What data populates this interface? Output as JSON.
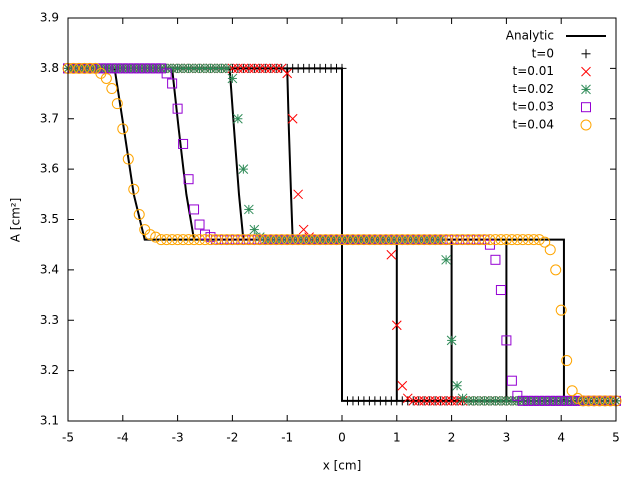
{
  "chart_data": {
    "type": "scatter",
    "xlabel": "x [cm]",
    "ylabel": "A [cm²]",
    "xlim": [
      -5,
      5
    ],
    "ylim": [
      3.1,
      3.9
    ],
    "xticks": [
      -5,
      -4,
      -3,
      -2,
      -1,
      0,
      1,
      2,
      3,
      4,
      5
    ],
    "yticks": [
      3.1,
      3.2,
      3.3,
      3.4,
      3.5,
      3.6,
      3.7,
      3.8,
      3.9
    ],
    "legend": "top-right",
    "grid": false,
    "x": [
      -5,
      -4.9,
      -4.8,
      -4.7,
      -4.6,
      -4.5,
      -4.4,
      -4.3,
      -4.2,
      -4.1,
      -4,
      -3.9,
      -3.8,
      -3.7,
      -3.6,
      -3.5,
      -3.4,
      -3.3,
      -3.2,
      -3.1,
      -3,
      -2.9,
      -2.8,
      -2.7,
      -2.6,
      -2.5,
      -2.4,
      -2.3,
      -2.2,
      -2.1,
      -2,
      -1.9,
      -1.8,
      -1.7,
      -1.6,
      -1.5,
      -1.4,
      -1.3,
      -1.2,
      -1.1,
      -1,
      -0.9,
      -0.8,
      -0.7,
      -0.6,
      -0.5,
      -0.4,
      -0.3,
      -0.2,
      -0.1,
      0,
      0.1,
      0.2,
      0.3,
      0.4,
      0.5,
      0.6,
      0.7,
      0.8,
      0.9,
      1,
      1.1,
      1.2,
      1.3,
      1.4,
      1.5,
      1.6,
      1.7,
      1.8,
      1.9,
      2,
      2.1,
      2.2,
      2.3,
      2.4,
      2.5,
      2.6,
      2.7,
      2.8,
      2.9,
      3,
      3.1,
      3.2,
      3.3,
      3.4,
      3.5,
      3.6,
      3.7,
      3.8,
      3.9,
      4,
      4.1,
      4.2,
      4.3,
      4.4,
      4.5,
      4.6,
      4.7,
      4.8,
      4.9,
      5
    ],
    "series": [
      {
        "name": "Analytic",
        "color": "#000000",
        "style": "line",
        "x": [
          -5,
          0,
          0,
          5,
          null,
          -5,
          -1.0,
          -0.97,
          -0.93,
          -0.9,
          1,
          1,
          5,
          null,
          -5,
          -2.05,
          -1.97,
          -1.88,
          -1.8,
          2,
          2,
          5,
          null,
          -5,
          -3.1,
          -2.98,
          -2.84,
          -2.7,
          3,
          3,
          5,
          null,
          -5,
          -4.15,
          -3.98,
          -3.8,
          -3.6,
          4.05,
          4.05,
          5
        ],
        "values": [
          3.8,
          3.8,
          3.14,
          3.14,
          null,
          3.8,
          3.8,
          3.68,
          3.55,
          3.46,
          3.46,
          3.14,
          3.14,
          null,
          3.8,
          3.8,
          3.68,
          3.55,
          3.46,
          3.46,
          3.14,
          3.14,
          null,
          3.8,
          3.8,
          3.68,
          3.55,
          3.46,
          3.46,
          3.14,
          3.14,
          null,
          3.8,
          3.8,
          3.68,
          3.55,
          3.46,
          3.46,
          3.14,
          3.14
        ]
      },
      {
        "name": "t=0",
        "color": "#000000",
        "style": "plus",
        "values": [
          3.8,
          3.8,
          3.8,
          3.8,
          3.8,
          3.8,
          3.8,
          3.8,
          3.8,
          3.8,
          3.8,
          3.8,
          3.8,
          3.8,
          3.8,
          3.8,
          3.8,
          3.8,
          3.8,
          3.8,
          3.8,
          3.8,
          3.8,
          3.8,
          3.8,
          3.8,
          3.8,
          3.8,
          3.8,
          3.8,
          3.8,
          3.8,
          3.8,
          3.8,
          3.8,
          3.8,
          3.8,
          3.8,
          3.8,
          3.8,
          3.8,
          3.8,
          3.8,
          3.8,
          3.8,
          3.8,
          3.8,
          3.8,
          3.8,
          3.8,
          3.8,
          3.14,
          3.14,
          3.14,
          3.14,
          3.14,
          3.14,
          3.14,
          3.14,
          3.14,
          3.14,
          3.14,
          3.14,
          3.14,
          3.14,
          3.14,
          3.14,
          3.14,
          3.14,
          3.14,
          3.14,
          3.14,
          3.14,
          3.14,
          3.14,
          3.14,
          3.14,
          3.14,
          3.14,
          3.14,
          3.14,
          3.14,
          3.14,
          3.14,
          3.14,
          3.14,
          3.14,
          3.14,
          3.14,
          3.14,
          3.14,
          3.14,
          3.14,
          3.14,
          3.14,
          3.14,
          3.14,
          3.14,
          3.14,
          3.14,
          3.14
        ]
      },
      {
        "name": "t=0.01",
        "color": "#ff0000",
        "style": "cross",
        "values": [
          3.8,
          3.8,
          3.8,
          3.8,
          3.8,
          3.8,
          3.8,
          3.8,
          3.8,
          3.8,
          3.8,
          3.8,
          3.8,
          3.8,
          3.8,
          3.8,
          3.8,
          3.8,
          3.8,
          3.8,
          3.8,
          3.8,
          3.8,
          3.8,
          3.8,
          3.8,
          3.8,
          3.8,
          3.8,
          3.8,
          3.8,
          3.8,
          3.8,
          3.8,
          3.8,
          3.8,
          3.8,
          3.8,
          3.8,
          3.8,
          3.79,
          3.7,
          3.55,
          3.48,
          3.465,
          3.46,
          3.46,
          3.46,
          3.46,
          3.46,
          3.46,
          3.46,
          3.46,
          3.46,
          3.46,
          3.46,
          3.46,
          3.46,
          3.46,
          3.43,
          3.29,
          3.17,
          3.145,
          3.14,
          3.14,
          3.14,
          3.14,
          3.14,
          3.14,
          3.14,
          3.14,
          3.14,
          3.14,
          3.14,
          3.14,
          3.14,
          3.14,
          3.14,
          3.14,
          3.14,
          3.14,
          3.14,
          3.14,
          3.14,
          3.14,
          3.14,
          3.14,
          3.14,
          3.14,
          3.14,
          3.14,
          3.14,
          3.14,
          3.14,
          3.14,
          3.14,
          3.14,
          3.14,
          3.14,
          3.14,
          3.14
        ]
      },
      {
        "name": "t=0.02",
        "color": "#2e8b57",
        "style": "star",
        "values": [
          3.8,
          3.8,
          3.8,
          3.8,
          3.8,
          3.8,
          3.8,
          3.8,
          3.8,
          3.8,
          3.8,
          3.8,
          3.8,
          3.8,
          3.8,
          3.8,
          3.8,
          3.8,
          3.8,
          3.8,
          3.8,
          3.8,
          3.8,
          3.8,
          3.8,
          3.8,
          3.8,
          3.8,
          3.8,
          3.8,
          3.78,
          3.7,
          3.6,
          3.52,
          3.48,
          3.465,
          3.46,
          3.46,
          3.46,
          3.46,
          3.46,
          3.46,
          3.46,
          3.46,
          3.46,
          3.46,
          3.46,
          3.46,
          3.46,
          3.46,
          3.46,
          3.46,
          3.46,
          3.46,
          3.46,
          3.46,
          3.46,
          3.46,
          3.46,
          3.46,
          3.46,
          3.46,
          3.46,
          3.46,
          3.46,
          3.46,
          3.46,
          3.46,
          3.46,
          3.42,
          3.26,
          3.17,
          3.145,
          3.14,
          3.14,
          3.14,
          3.14,
          3.14,
          3.14,
          3.14,
          3.14,
          3.14,
          3.14,
          3.14,
          3.14,
          3.14,
          3.14,
          3.14,
          3.14,
          3.14,
          3.14,
          3.14,
          3.14,
          3.14,
          3.14,
          3.14,
          3.14,
          3.14,
          3.14,
          3.14,
          3.14
        ]
      },
      {
        "name": "t=0.03",
        "color": "#9400d3",
        "style": "square",
        "values": [
          3.8,
          3.8,
          3.8,
          3.8,
          3.8,
          3.8,
          3.8,
          3.8,
          3.8,
          3.8,
          3.8,
          3.8,
          3.8,
          3.8,
          3.8,
          3.8,
          3.8,
          3.8,
          3.79,
          3.77,
          3.72,
          3.65,
          3.58,
          3.52,
          3.49,
          3.47,
          3.465,
          3.46,
          3.46,
          3.46,
          3.46,
          3.46,
          3.46,
          3.46,
          3.46,
          3.46,
          3.46,
          3.46,
          3.46,
          3.46,
          3.46,
          3.46,
          3.46,
          3.46,
          3.46,
          3.46,
          3.46,
          3.46,
          3.46,
          3.46,
          3.46,
          3.46,
          3.46,
          3.46,
          3.46,
          3.46,
          3.46,
          3.46,
          3.46,
          3.46,
          3.46,
          3.46,
          3.46,
          3.46,
          3.46,
          3.46,
          3.46,
          3.46,
          3.46,
          3.46,
          3.46,
          3.46,
          3.46,
          3.46,
          3.46,
          3.46,
          3.46,
          3.45,
          3.42,
          3.36,
          3.26,
          3.18,
          3.15,
          3.14,
          3.14,
          3.14,
          3.14,
          3.14,
          3.14,
          3.14,
          3.14,
          3.14,
          3.14,
          3.14,
          3.14,
          3.14,
          3.14,
          3.14,
          3.14,
          3.14,
          3.14
        ]
      },
      {
        "name": "t=0.04",
        "color": "#ffa500",
        "style": "circle",
        "values": [
          3.8,
          3.8,
          3.8,
          3.8,
          3.8,
          3.8,
          3.79,
          3.78,
          3.76,
          3.73,
          3.68,
          3.62,
          3.56,
          3.51,
          3.48,
          3.47,
          3.465,
          3.46,
          3.46,
          3.46,
          3.46,
          3.46,
          3.46,
          3.46,
          3.46,
          3.46,
          3.46,
          3.46,
          3.46,
          3.46,
          3.46,
          3.46,
          3.46,
          3.46,
          3.46,
          3.46,
          3.46,
          3.46,
          3.46,
          3.46,
          3.46,
          3.46,
          3.46,
          3.46,
          3.46,
          3.46,
          3.46,
          3.46,
          3.46,
          3.46,
          3.46,
          3.46,
          3.46,
          3.46,
          3.46,
          3.46,
          3.46,
          3.46,
          3.46,
          3.46,
          3.46,
          3.46,
          3.46,
          3.46,
          3.46,
          3.46,
          3.46,
          3.46,
          3.46,
          3.46,
          3.46,
          3.46,
          3.46,
          3.46,
          3.46,
          3.46,
          3.46,
          3.46,
          3.46,
          3.46,
          3.46,
          3.46,
          3.46,
          3.46,
          3.46,
          3.46,
          3.46,
          3.455,
          3.44,
          3.4,
          3.32,
          3.22,
          3.16,
          3.145,
          3.14,
          3.14,
          3.14,
          3.14,
          3.14,
          3.14,
          3.14
        ]
      }
    ]
  }
}
